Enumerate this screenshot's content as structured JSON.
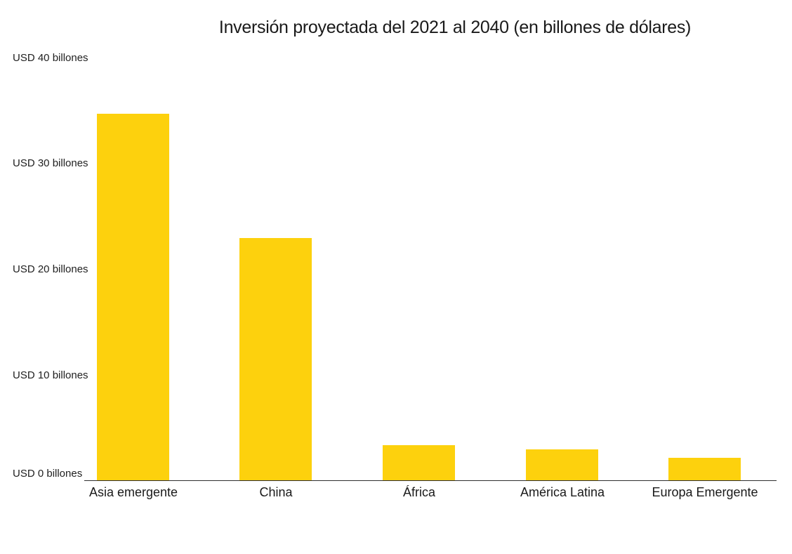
{
  "chart_data": {
    "type": "bar",
    "title": "Inversión proyectada del 2021 al 2040 (en billones de dólares)",
    "categories": [
      "Asia emergente",
      "China",
      "África",
      "América Latina",
      "Europa Emergente"
    ],
    "values": [
      34.6,
      22.9,
      3.3,
      2.9,
      2.1
    ],
    "unit": "USD billones",
    "ylim": [
      0,
      40
    ],
    "y_tick_labels": [
      "USD 40 billones",
      "USD 30 billones",
      "USD 20 billones",
      "USD 10 billones",
      "USD 0 billones"
    ],
    "xlabel": "",
    "ylabel": "",
    "grid": false,
    "legend": false,
    "bar_color": "#FDD10D",
    "axis_line_color": "#2e2e2e",
    "text_color": "#1a1a1a",
    "background_color": "#ffffff"
  }
}
